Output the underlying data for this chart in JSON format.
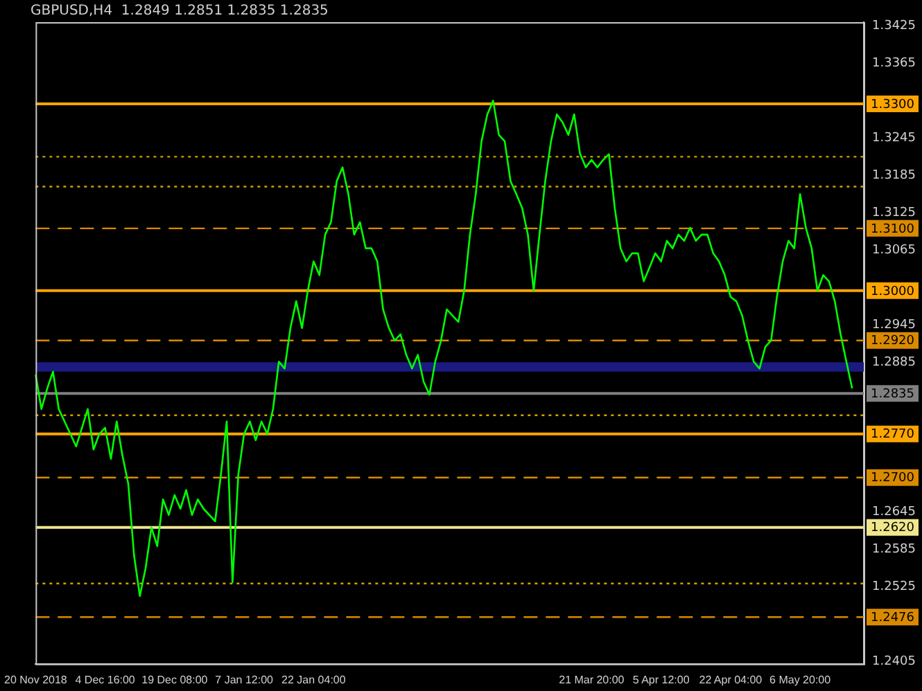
{
  "chart_data": {
    "type": "line",
    "title": "GBPUSD,H4  1.2849 1.2851 1.2835 1.2835",
    "categories": [
      "20 Nov 2018",
      null,
      null,
      null,
      null,
      null,
      null,
      null,
      null,
      null,
      null,
      null,
      "4 Dec 16:00",
      null,
      null,
      null,
      null,
      null,
      null,
      null,
      null,
      null,
      null,
      null,
      "19 Dec 08:00",
      null,
      null,
      null,
      null,
      null,
      null,
      null,
      null,
      null,
      null,
      null,
      "7 Jan 12:00",
      null,
      null,
      null,
      null,
      null,
      null,
      null,
      null,
      null,
      null,
      null,
      "22 Jan 04:00",
      null,
      null,
      null,
      null,
      null,
      null,
      null,
      null,
      null,
      null,
      null,
      null,
      null,
      null,
      null,
      null,
      null,
      null,
      null,
      null,
      null,
      null,
      null,
      null,
      null,
      null,
      null,
      null,
      null,
      null,
      null,
      null,
      null,
      null,
      null,
      null,
      null,
      null,
      null,
      null,
      null,
      null,
      null,
      null,
      null,
      null,
      null,
      "21 Mar 20:00",
      null,
      null,
      null,
      null,
      null,
      null,
      null,
      null,
      null,
      null,
      null,
      "5 Apr 12:00",
      null,
      null,
      null,
      null,
      null,
      null,
      null,
      null,
      null,
      null,
      null,
      "22 Apr 04:00",
      null,
      null,
      null,
      null,
      null,
      null,
      null,
      null,
      null,
      null,
      null,
      "6 May 20:00",
      null,
      null,
      null,
      null,
      null,
      null,
      null,
      null,
      null,
      null,
      null
    ],
    "series": [
      {
        "color": "#00ff00",
        "values": [
          1.2865,
          1.281,
          1.2843,
          1.287,
          1.281,
          1.279,
          1.277,
          1.275,
          1.278,
          1.281,
          1.2745,
          1.277,
          1.278,
          1.273,
          1.279,
          1.2735,
          1.269,
          1.2575,
          1.251,
          1.2555,
          1.262,
          1.259,
          1.2665,
          1.264,
          1.2672,
          1.265,
          1.268,
          1.264,
          1.2665,
          1.265,
          1.264,
          1.263,
          1.2705,
          1.279,
          1.2532,
          1.2705,
          1.277,
          1.279,
          1.276,
          1.279,
          1.277,
          1.281,
          1.2886,
          1.2875,
          1.294,
          1.2983,
          1.294,
          1.3,
          1.3047,
          1.3025,
          1.309,
          1.311,
          1.3176,
          1.3198,
          1.3155,
          1.309,
          1.311,
          1.3068,
          1.3068,
          1.3047,
          1.297,
          1.294,
          1.292,
          1.293,
          1.2897,
          1.2875,
          1.2897,
          1.2854,
          1.2833,
          1.2886,
          1.292,
          1.297,
          1.296,
          1.295,
          1.3,
          1.309,
          1.3155,
          1.324,
          1.3283,
          1.3305,
          1.325,
          1.324,
          1.3176,
          1.3155,
          1.3133,
          1.309,
          1.3,
          1.309,
          1.3176,
          1.324,
          1.3283,
          1.327,
          1.325,
          1.3283,
          1.322,
          1.3198,
          1.321,
          1.3198,
          1.321,
          1.3219,
          1.3133,
          1.3068,
          1.3047,
          1.306,
          1.306,
          1.3015,
          1.3037,
          1.306,
          1.3047,
          1.308,
          1.3068,
          1.309,
          1.308,
          1.3101,
          1.308,
          1.309,
          1.309,
          1.306,
          1.3047,
          1.3025,
          1.299,
          1.2983,
          1.296,
          1.292,
          1.2886,
          1.2875,
          1.291,
          1.292,
          1.299,
          1.3047,
          1.308,
          1.3068,
          1.3155,
          1.3101,
          1.3068,
          1.3,
          1.3025,
          1.3015,
          1.2983,
          1.293,
          1.2886,
          1.2843,
          null,
          null
        ]
      }
    ],
    "ylim": [
      1.2401,
      1.3431
    ],
    "yticks": [
      1.2405,
      1.2525,
      1.2585,
      1.2645,
      1.2885,
      1.2945,
      1.3065,
      1.3125,
      1.3185,
      1.3245,
      1.3365,
      1.3425
    ],
    "ref_lines": [
      {
        "axis": "y",
        "value": 1.33,
        "label": "1.3300",
        "color": "#ffa500",
        "line_style": "solid"
      },
      {
        "axis": "y",
        "value": 1.31,
        "label": "1.3100",
        "color": "#d98a00",
        "line_style": "dashed"
      },
      {
        "axis": "y",
        "value": 1.3,
        "label": "1.3000",
        "color": "#ffa500",
        "line_style": "solid"
      },
      {
        "axis": "y",
        "value": 1.292,
        "label": "1.2920",
        "color": "#d98a00",
        "line_style": "dashed"
      },
      {
        "axis": "y",
        "value": 1.2835,
        "label": "1.2835",
        "color": "#808080",
        "line_style": "solid"
      },
      {
        "axis": "y",
        "value": 1.277,
        "label": "1.2770",
        "color": "#ffa500",
        "line_style": "solid"
      },
      {
        "axis": "y",
        "value": 1.27,
        "label": "1.2700",
        "color": "#d98a00",
        "line_style": "dashed"
      },
      {
        "axis": "y",
        "value": 1.262,
        "label": "1.2620",
        "color": "#f0e68c",
        "line_style": "solid"
      },
      {
        "axis": "y",
        "value": 1.2476,
        "label": "1.2476",
        "color": "#d98a00",
        "line_style": "dashed"
      },
      {
        "axis": "y",
        "value": 1.3215,
        "color": "#d4a000",
        "line_style": "dotted"
      },
      {
        "axis": "y",
        "value": 1.3167,
        "color": "#d4a000",
        "line_style": "dotted"
      },
      {
        "axis": "y",
        "value": 1.28,
        "color": "#d4a000",
        "line_style": "dotted"
      },
      {
        "axis": "y",
        "value": 1.253,
        "color": "#d4a000",
        "line_style": "dotted"
      }
    ],
    "bands": [
      {
        "axis": "y",
        "from": 1.287,
        "to": 1.2885,
        "color": "#1a1a80"
      }
    ],
    "grid": false,
    "legend": false,
    "marker": "none"
  }
}
